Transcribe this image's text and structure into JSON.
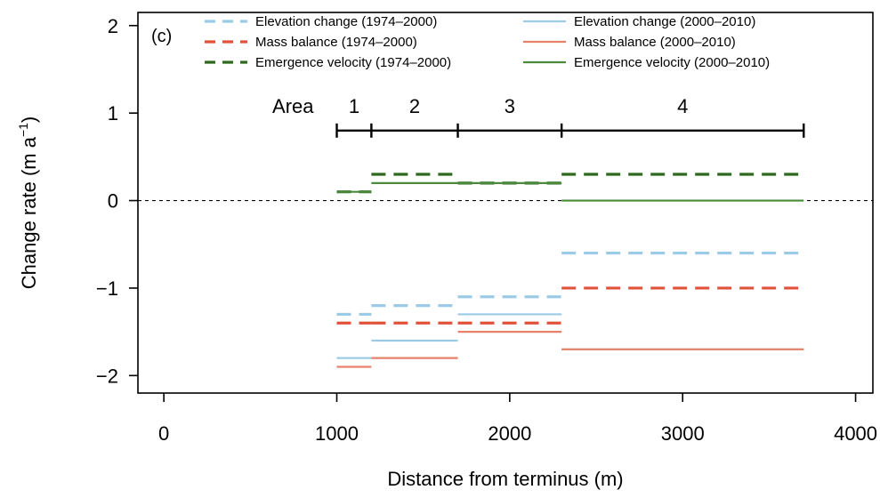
{
  "chart_data": {
    "type": "line",
    "panel_label": "(c)",
    "xlabel": "Distance from terminus (m)",
    "ylabel": "Change rate (m a",
    "ylabel_sup": "−1",
    "ylabel_close": ")",
    "xlim": [
      -150,
      4100
    ],
    "ylim": [
      -2.2,
      2.15
    ],
    "xticks": [
      0,
      1000,
      2000,
      3000,
      4000
    ],
    "xtick_labels": [
      "0",
      "1000",
      "2000",
      "3000",
      "4000"
    ],
    "yticks": [
      -2,
      -1,
      0,
      1,
      2
    ],
    "ytick_labels": [
      "−2",
      "−1",
      "0",
      "1",
      "2"
    ],
    "zero_line": true,
    "grid": false,
    "legend_position": "top",
    "area_bar": {
      "title": "Area",
      "y": 0.8,
      "boundaries": [
        1000,
        1200,
        1700,
        2300,
        3700
      ],
      "labels": [
        "1",
        "2",
        "3",
        "4"
      ]
    },
    "series": [
      {
        "name": "Elevation change (1974–2000)",
        "color": "#9ccbe8",
        "style": "dashed",
        "segments": [
          {
            "x": [
              1000,
              1200
            ],
            "y": -1.3
          },
          {
            "x": [
              1200,
              1700
            ],
            "y": -1.2
          },
          {
            "x": [
              1700,
              2300
            ],
            "y": -1.1
          },
          {
            "x": [
              2300,
              3700
            ],
            "y": -0.6
          }
        ]
      },
      {
        "name": "Mass balance (1974–2000)",
        "color": "#e0533a",
        "style": "dashed",
        "segments": [
          {
            "x": [
              1000,
              1200
            ],
            "y": -1.4
          },
          {
            "x": [
              1200,
              1700
            ],
            "y": -1.4
          },
          {
            "x": [
              1700,
              2300
            ],
            "y": -1.4
          },
          {
            "x": [
              2300,
              3700
            ],
            "y": -1.0
          }
        ]
      },
      {
        "name": "Emergence velocity (1974–2000)",
        "color": "#2d6a1f",
        "style": "dashed",
        "segments": [
          {
            "x": [
              1000,
              1200
            ],
            "y": 0.1
          },
          {
            "x": [
              1200,
              1700
            ],
            "y": 0.3
          },
          {
            "x": [
              1700,
              2300
            ],
            "y": 0.2
          },
          {
            "x": [
              2300,
              3700
            ],
            "y": 0.3
          }
        ]
      },
      {
        "name": "Elevation change (2000–2010)",
        "color": "#9ccbe8",
        "style": "solid",
        "segments": [
          {
            "x": [
              1000,
              1200
            ],
            "y": -1.8
          },
          {
            "x": [
              1200,
              1700
            ],
            "y": -1.6
          },
          {
            "x": [
              1700,
              2300
            ],
            "y": -1.3
          },
          {
            "x": [
              2300,
              3700
            ],
            "y": -1.7
          }
        ]
      },
      {
        "name": "Mass balance (2000–2010)",
        "color": "#e8816a",
        "style": "solid",
        "segments": [
          {
            "x": [
              1000,
              1200
            ],
            "y": -1.9
          },
          {
            "x": [
              1200,
              1700
            ],
            "y": -1.8
          },
          {
            "x": [
              1700,
              2300
            ],
            "y": -1.5
          },
          {
            "x": [
              2300,
              3700
            ],
            "y": -1.7
          }
        ]
      },
      {
        "name": "Emergence velocity (2000–2010)",
        "color": "#4a8a3a",
        "style": "solid",
        "segments": [
          {
            "x": [
              1000,
              1200
            ],
            "y": 0.1
          },
          {
            "x": [
              1200,
              1700
            ],
            "y": 0.2
          },
          {
            "x": [
              1700,
              2300
            ],
            "y": 0.2
          },
          {
            "x": [
              2300,
              3700
            ],
            "y": 0.0
          }
        ]
      }
    ]
  }
}
